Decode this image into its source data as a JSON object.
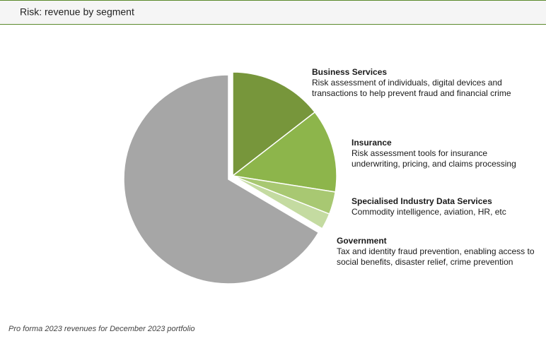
{
  "chart_data": {
    "type": "pie",
    "title": "Risk: revenue by segment",
    "categories": [
      "Business Services",
      "Insurance",
      "Specialised Industry Data Services",
      "Government",
      null
    ],
    "descriptions": [
      [
        "Risk assessment of individuals, digital devices and",
        "transactions to help prevent fraud and financial crime"
      ],
      [
        "Risk assessment tools for insurance",
        "underwriting, pricing, and claims processing"
      ],
      [
        "Commodity intelligence, aviation, HR, etc"
      ],
      [
        "Tax and identity fraud prevention, enabling access to",
        "social benefits, disaster relief, crime prevention"
      ],
      null
    ],
    "values": [
      14.5,
      13,
      3.5,
      2.5,
      66.5
    ],
    "colors": [
      "#77963b",
      "#8db54b",
      "#a8c872",
      "#c4dba1",
      "#a6a6a6"
    ],
    "note": "Pro forma 2023 revenues for December 2023 portfolio"
  }
}
